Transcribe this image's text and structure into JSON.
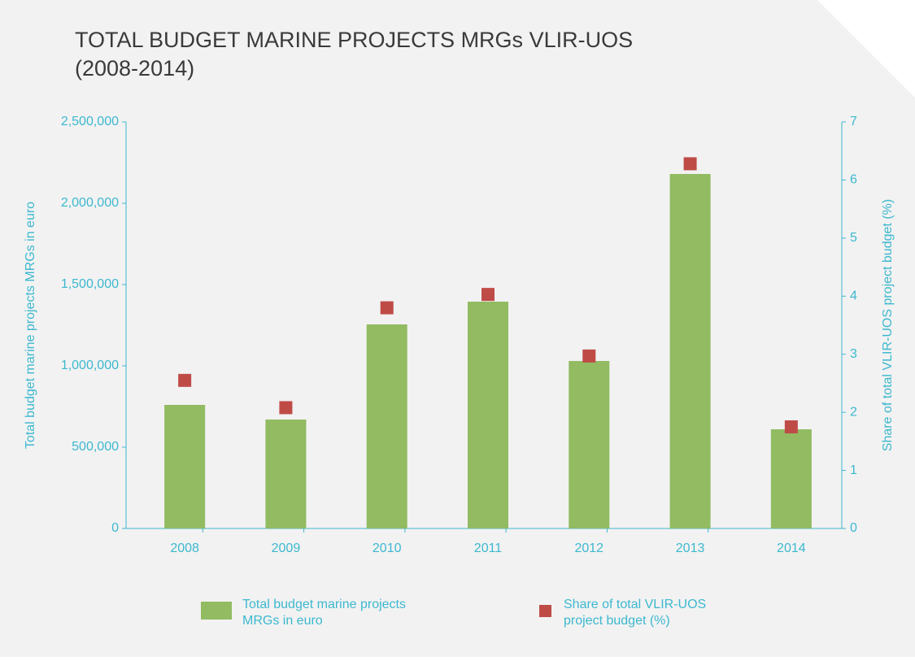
{
  "chart_data": {
    "type": "bar",
    "title": [
      "TOTAL BUDGET MARINE PROJECTS MRGs VLIR-UOS",
      "(2008-2014)"
    ],
    "y_label": "Total budget marine projects MRGs in euro",
    "y2_label": "Share of total VLIR-UOS project budget (%)",
    "categories": [
      "2008",
      "2009",
      "2010",
      "2011",
      "2012",
      "2013",
      "2014"
    ],
    "series": [
      {
        "name": [
          "Total budget marine projects",
          "MRGs in euro"
        ],
        "type": "bar",
        "color": "#92bb62",
        "values": [
          760000,
          670000,
          1255000,
          1395000,
          1030000,
          2180000,
          610000
        ]
      },
      {
        "name": [
          "Share of total VLIR-UOS",
          "project budget (%)"
        ],
        "type": "scatter",
        "axis": "y2",
        "color": "#bf4b47",
        "values": [
          2.55,
          2.08,
          3.8,
          4.03,
          2.97,
          6.28,
          1.75
        ]
      }
    ],
    "ylim": [
      0,
      2500000
    ],
    "yticks": [
      0,
      {
        "value": 500000,
        "label": "500,000"
      },
      {
        "value": 1000000,
        "label": "1,000,000"
      },
      {
        "value": 1500000,
        "label": "1,500,000"
      },
      {
        "value": 2000000,
        "label": "2,000,000"
      },
      {
        "value": 2500000,
        "label": "2,500,000"
      }
    ],
    "y2lim": [
      0,
      7
    ],
    "y2ticks": [
      0,
      1,
      2,
      3,
      4,
      5,
      6,
      7
    ],
    "legend": "bottom"
  }
}
